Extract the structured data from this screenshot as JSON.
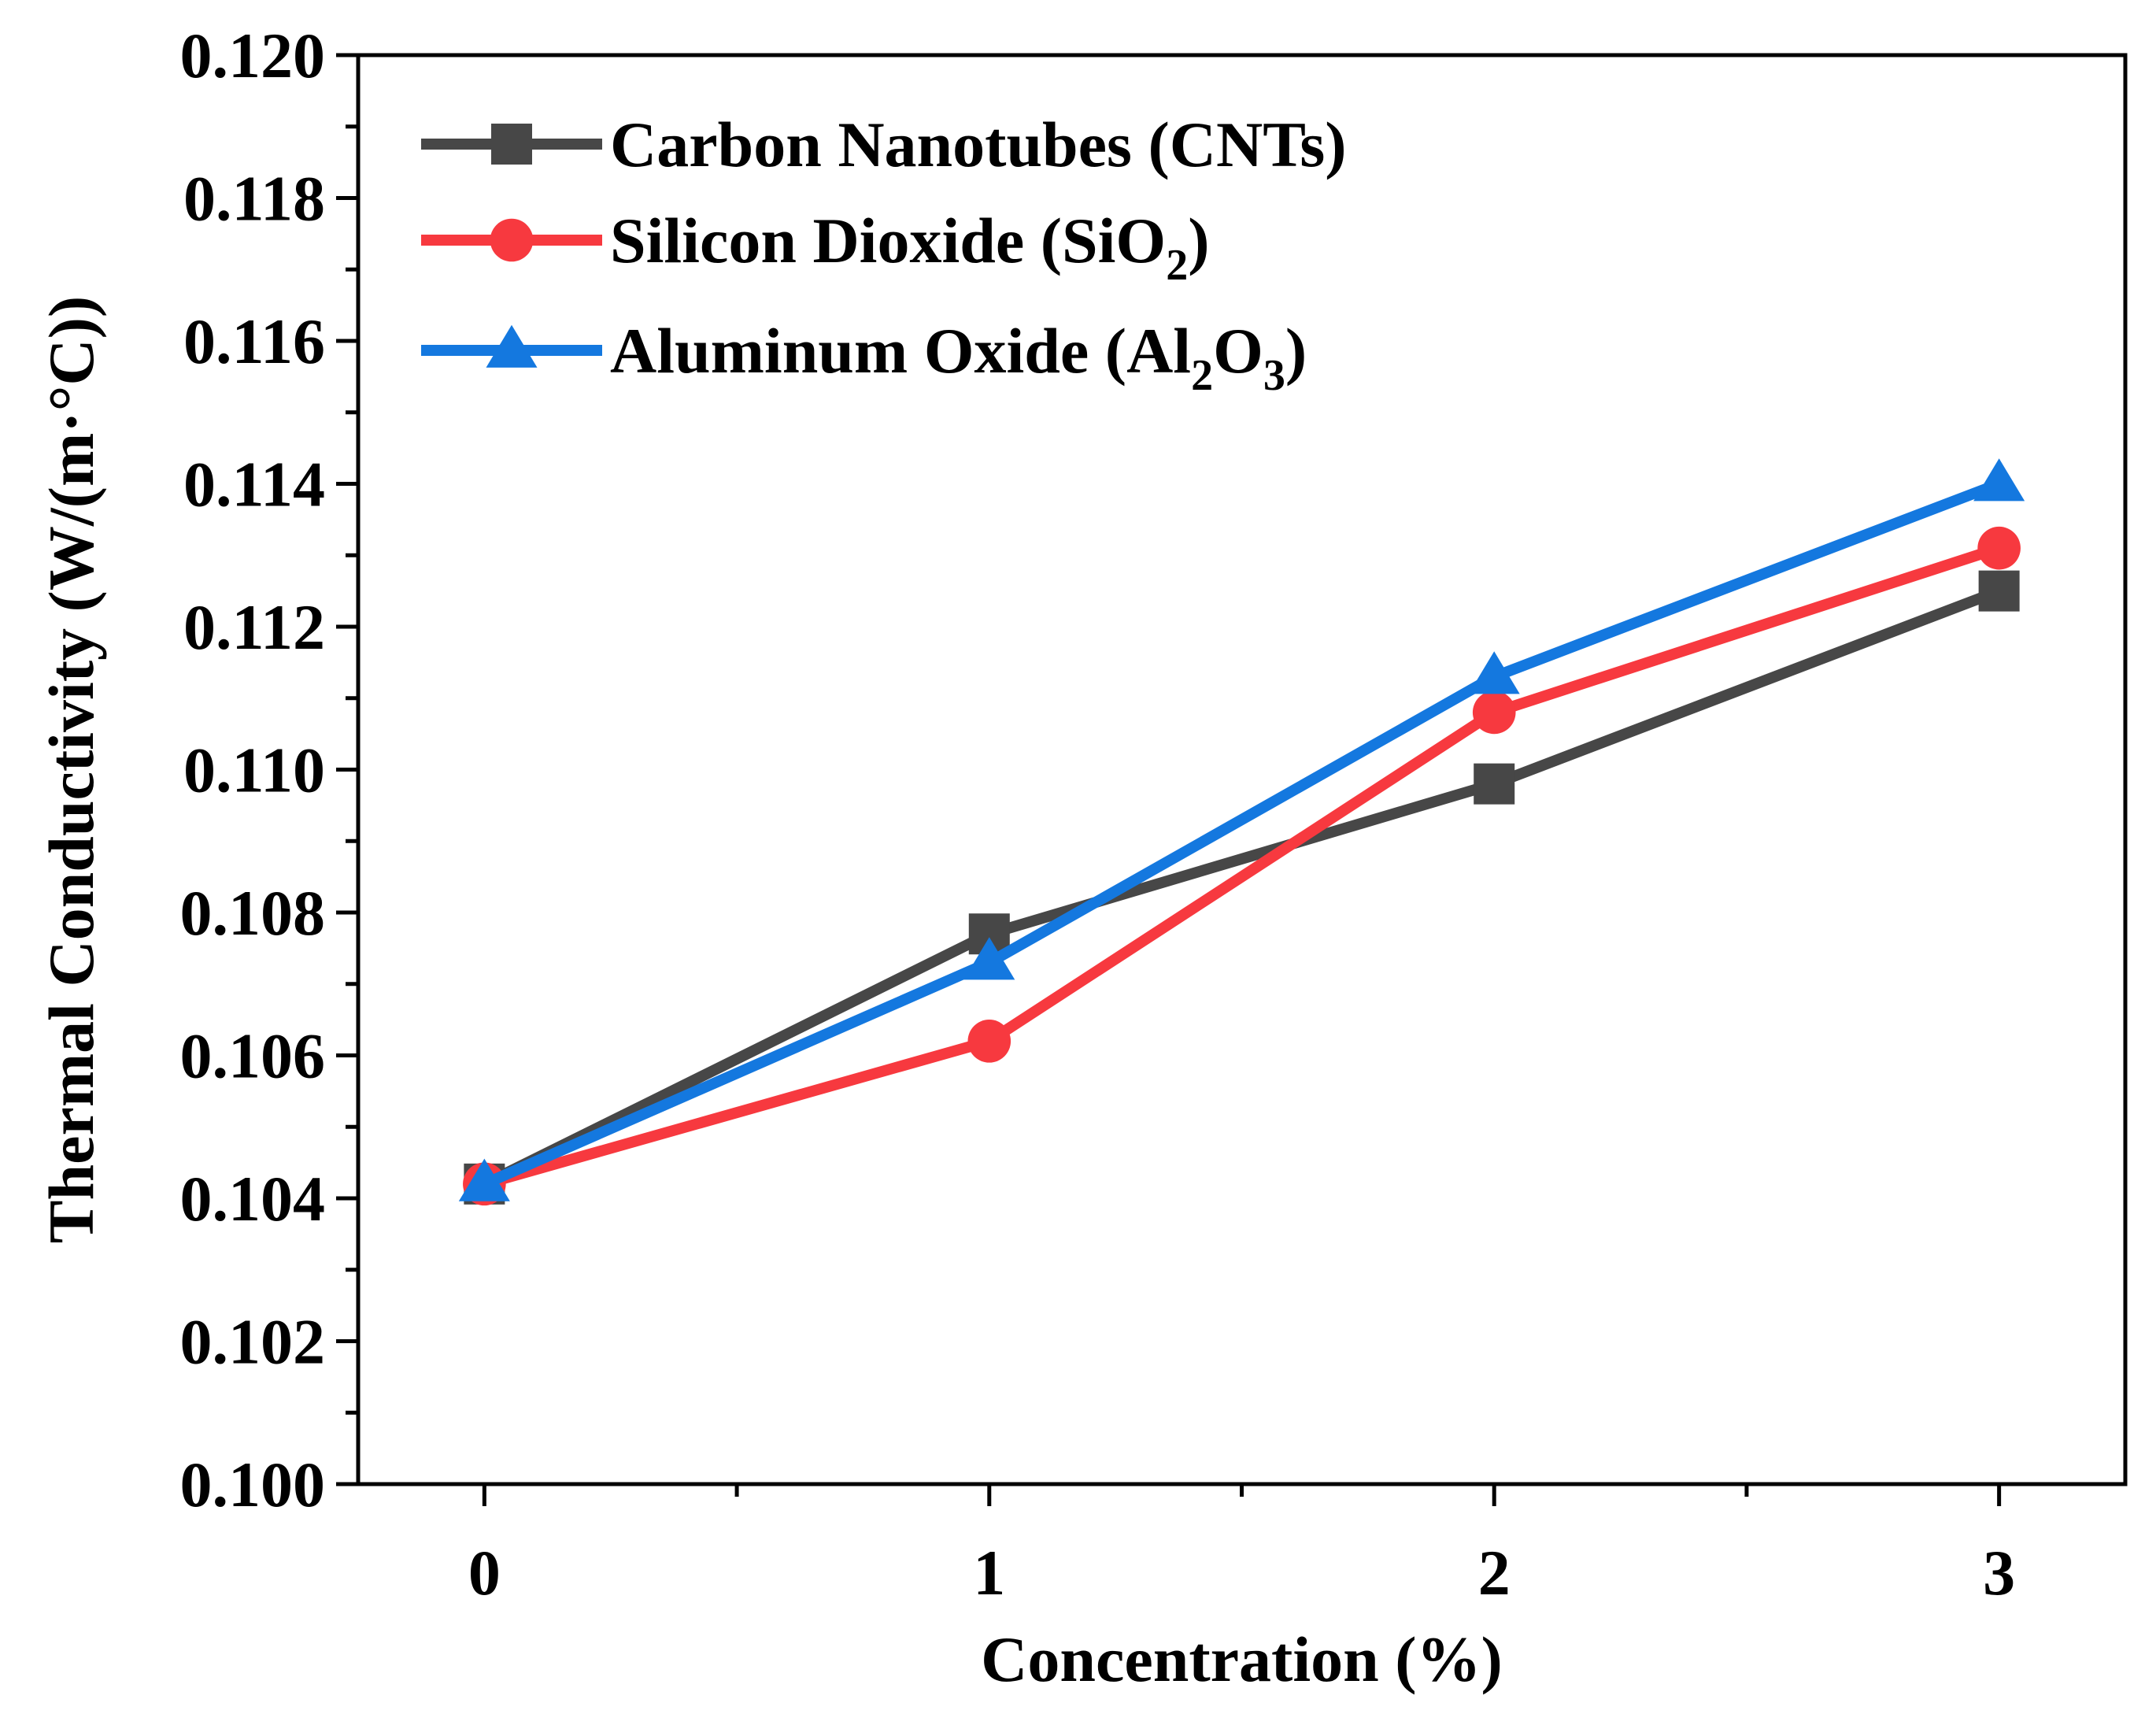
{
  "chart_data": {
    "type": "line",
    "title": "",
    "xlabel": "Concentration (%)",
    "ylabel": "Thermal Conductivity (W/(m·°C))",
    "xlim": [
      -0.25,
      3.25
    ],
    "ylim": [
      0.1,
      0.12
    ],
    "xticks": [
      0,
      1,
      2,
      3
    ],
    "xtick_labels": [
      "0",
      "1",
      "2",
      "3"
    ],
    "yticks": [
      0.1,
      0.102,
      0.104,
      0.106,
      0.108,
      0.11,
      0.112,
      0.114,
      0.116,
      0.118,
      0.12
    ],
    "ytick_labels": [
      "0.100",
      "0.102",
      "0.104",
      "0.106",
      "0.108",
      "0.110",
      "0.112",
      "0.114",
      "0.116",
      "0.118",
      "0.120"
    ],
    "grid": false,
    "legend_position": "top-left",
    "x": [
      0,
      1,
      2,
      3
    ],
    "series": [
      {
        "name": "Carbon Nanotubes (CNTs)",
        "label_parts": [
          "Carbon Nanotubes (CNTs)"
        ],
        "color": "#474747",
        "marker": "square",
        "values": [
          0.1042,
          0.1077,
          0.1098,
          0.1125
        ]
      },
      {
        "name": "Silicon Dioxide (SiO2)",
        "label_parts": [
          "Silicon Dioxide (SiO",
          "2",
          ")"
        ],
        "color": "#f7393f",
        "marker": "circle",
        "values": [
          0.1042,
          0.1062,
          0.1108,
          0.1131
        ]
      },
      {
        "name": "Aluminum Oxide (Al2O3)",
        "label_parts": [
          "Aluminum Oxide (Al",
          "2",
          "O",
          "3",
          ")"
        ],
        "color": "#1478df",
        "marker": "triangle",
        "values": [
          0.1042,
          0.1073,
          0.1113,
          0.114
        ]
      }
    ]
  }
}
